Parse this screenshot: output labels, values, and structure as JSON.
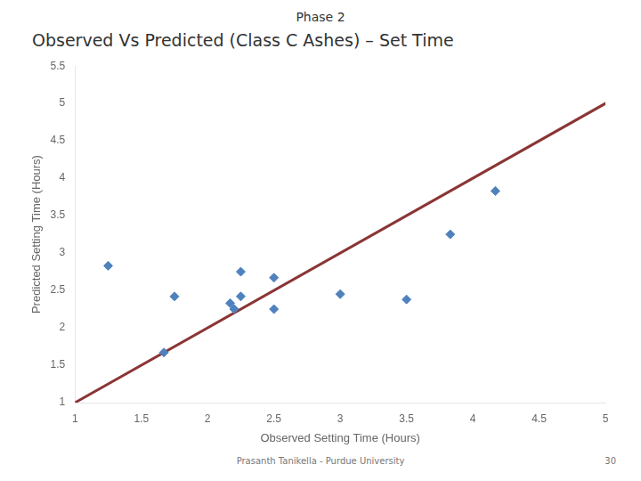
{
  "chart_data": {
    "type": "scatter",
    "subtitle": "Phase 2",
    "title": "Observed Vs Predicted (Class C Ashes) – Set Time",
    "x_label": "Observed Setting Time (Hours)",
    "y_label": "Predicted Setting Time (Hours)",
    "xlim": [
      1,
      5
    ],
    "ylim": [
      1,
      5.5
    ],
    "xticks": [
      1,
      1.5,
      2,
      2.5,
      3,
      3.5,
      4,
      4.5,
      5
    ],
    "yticks": [
      1,
      1.5,
      2,
      2.5,
      3,
      3.5,
      4,
      4.5,
      5,
      5.5
    ],
    "grid": false,
    "series": [
      {
        "type": "line",
        "color": "#8b3535",
        "x": [
          1,
          5
        ],
        "values": [
          1,
          5
        ]
      },
      {
        "type": "scatter",
        "color": "#4f81bd",
        "marker": "diamond",
        "x": [
          1.25,
          1.67,
          1.75,
          2.17,
          2.2,
          2.25,
          2.25,
          2.5,
          2.5,
          3.0,
          3.5,
          3.83,
          4.17
        ],
        "values": [
          2.83,
          1.67,
          2.42,
          2.33,
          2.25,
          2.75,
          2.42,
          2.67,
          2.25,
          2.45,
          2.38,
          3.25,
          3.83
        ]
      }
    ],
    "annotations": [
      "Prasanth Tanikella - Purdue University",
      "30"
    ]
  }
}
